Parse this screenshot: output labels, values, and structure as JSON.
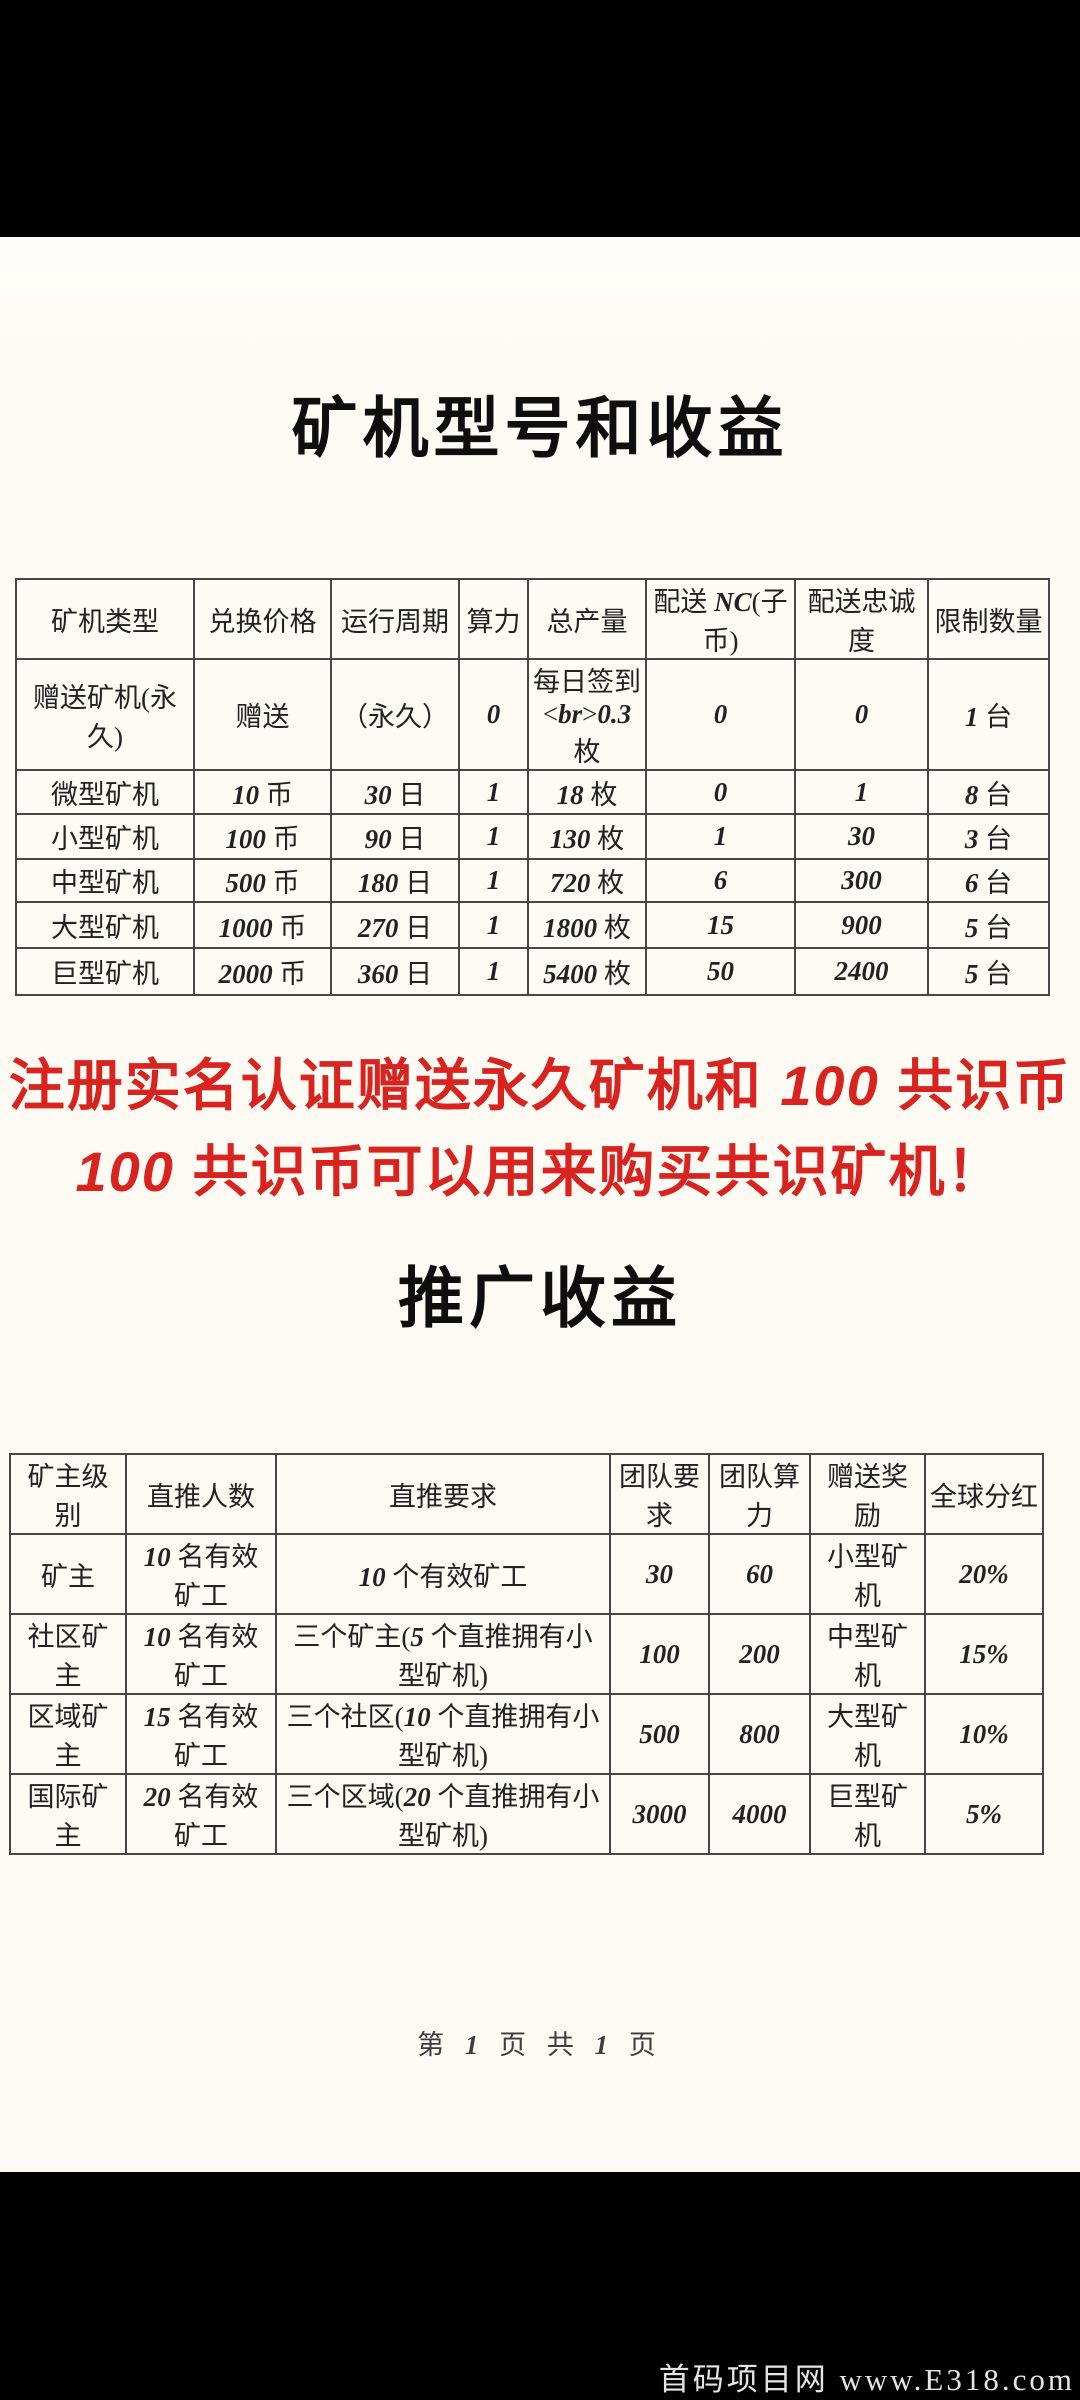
{
  "page": {
    "title1": "矿机型号和收益",
    "title2": "推广收益",
    "footer": "第 1 页 共 1 页",
    "watermark": "首码项目网 www.E318.com"
  },
  "notice": {
    "line1": "注册实名认证赠送永久矿机和 100 共识币",
    "line2": "100 共识币可以用来购买共识矿机！"
  },
  "colors": {
    "notice_red": "#d8231f",
    "band_black": "#000000",
    "page_background": "#fdfbf4",
    "table_line": "#474747",
    "watermark_text": "#e4e4e4"
  },
  "table1": {
    "headers": [
      "矿机类型",
      "兑换价格",
      "运行周期",
      "算力",
      "总产量",
      "配送 NC(子币)",
      "配送忠诚度",
      "限制数量"
    ],
    "rows": [
      [
        "赠送矿机(永久)",
        "赠送",
        "（永久）",
        "0",
        "每日签到\n0.3 枚",
        "0",
        "0",
        "1 台"
      ],
      [
        "微型矿机",
        "10 币",
        "30 日",
        "1",
        "18 枚",
        "0",
        "1",
        "8 台"
      ],
      [
        "小型矿机",
        "100 币",
        "90 日",
        "1",
        "130 枚",
        "1",
        "30",
        "3 台"
      ],
      [
        "中型矿机",
        "500 币",
        "180 日",
        "1",
        "720 枚",
        "6",
        "300",
        "6 台"
      ],
      [
        "大型矿机",
        "1000 币",
        "270 日",
        "1",
        "1800 枚",
        "15",
        "900",
        "5 台"
      ],
      [
        "巨型矿机",
        "2000 币",
        "360 日",
        "1",
        "5400 枚",
        "50",
        "2400",
        "5 台"
      ]
    ]
  },
  "table2": {
    "headers": [
      "矿主级别",
      "直推人数",
      "直推要求",
      "团队要求",
      "团队算力",
      "赠送奖励",
      "全球分红"
    ],
    "rows": [
      [
        "矿主",
        "10 名有效矿工",
        "10 个有效矿工",
        "30",
        "60",
        "小型矿机",
        "20%"
      ],
      [
        "社区矿主",
        "10 名有效矿工",
        "三个矿主(5 个直推拥有小型矿机)",
        "100",
        "200",
        "中型矿机",
        "15%"
      ],
      [
        "区域矿主",
        "15 名有效矿工",
        "三个社区(10 个直推拥有小型矿机)",
        "500",
        "800",
        "大型矿机",
        "10%"
      ],
      [
        "国际矿主",
        "20 名有效矿工",
        "三个区域(20 个直推拥有小型矿机)",
        "3000",
        "4000",
        "巨型矿机",
        "5%"
      ]
    ]
  }
}
